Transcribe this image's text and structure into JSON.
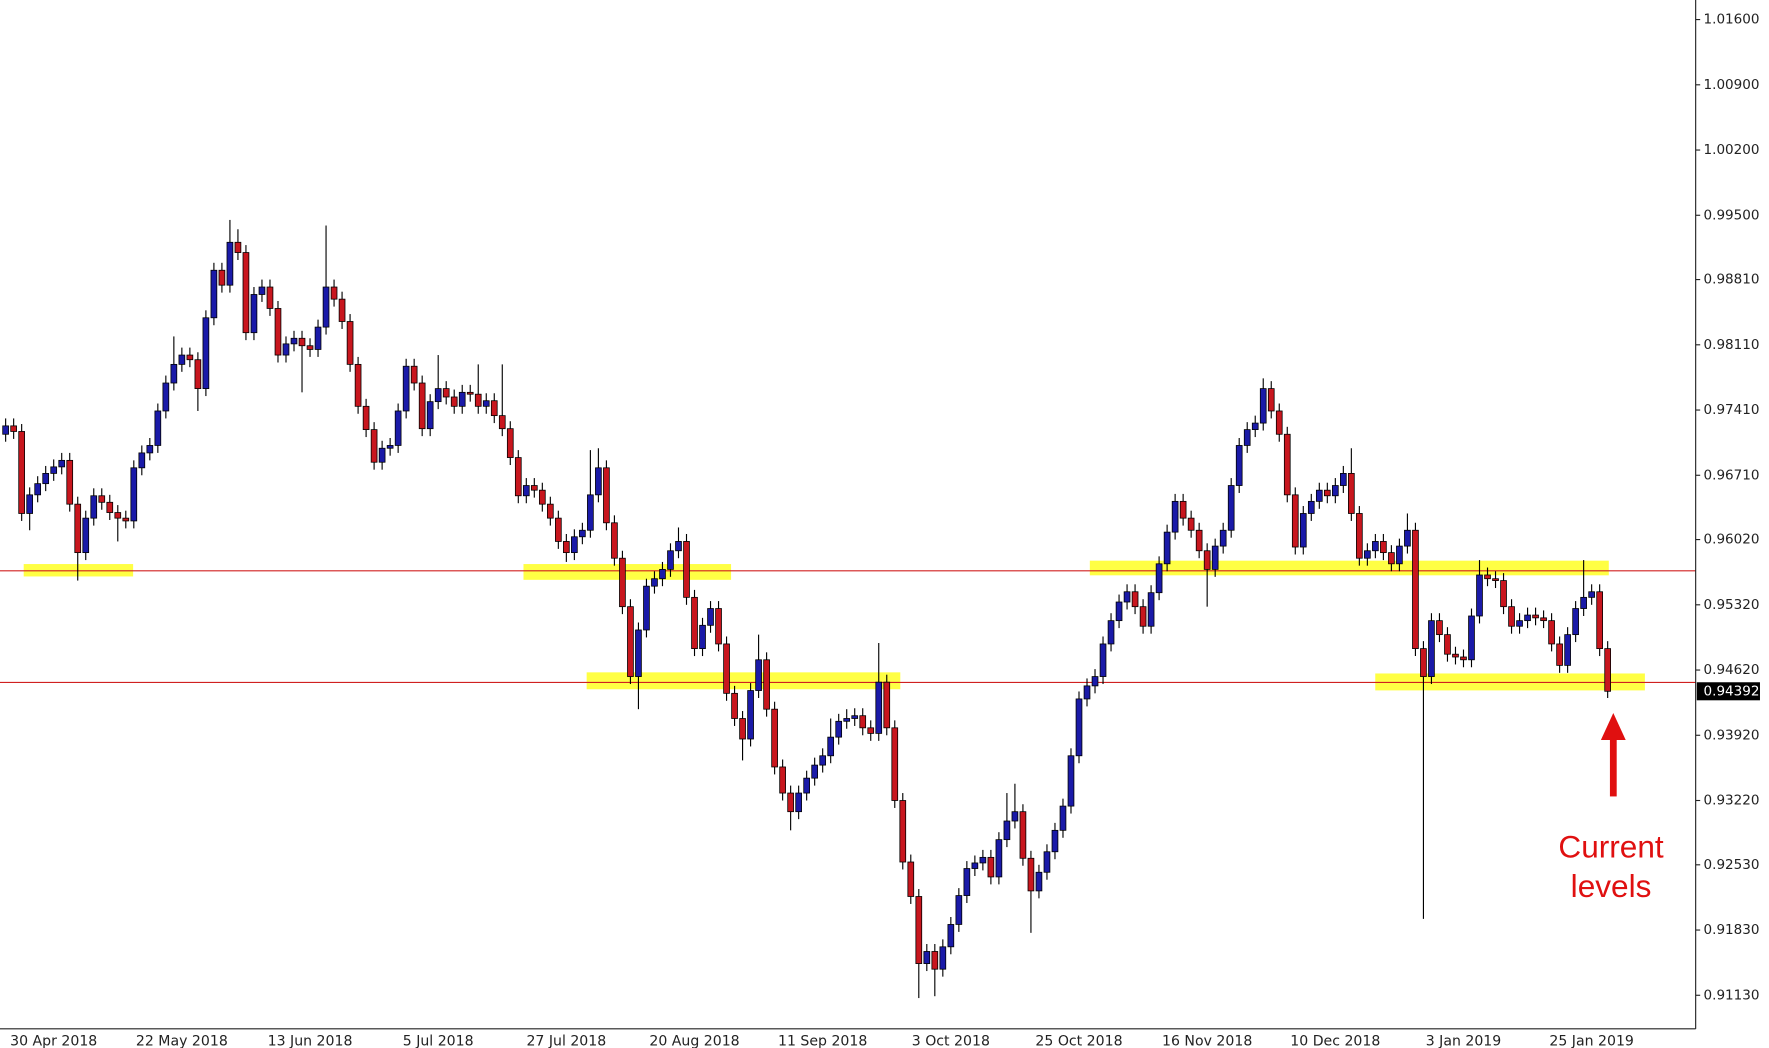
{
  "chart_data": {
    "type": "candlestick",
    "up_color": "#1a1aa8",
    "down_color": "#c8161e",
    "wick_color": "#000000",
    "ylim": [
      0.9077,
      1.0181
    ],
    "yticks": [
      {
        "value": 1.016,
        "label": "1.01600"
      },
      {
        "value": 1.009,
        "label": "1.00900"
      },
      {
        "value": 1.002,
        "label": "1.00200"
      },
      {
        "value": 0.995,
        "label": "0.99500"
      },
      {
        "value": 0.9881,
        "label": "0.98810"
      },
      {
        "value": 0.9811,
        "label": "0.98110"
      },
      {
        "value": 0.9741,
        "label": "0.97410"
      },
      {
        "value": 0.9671,
        "label": "0.96710"
      },
      {
        "value": 0.9602,
        "label": "0.96020"
      },
      {
        "value": 0.9532,
        "label": "0.95320"
      },
      {
        "value": 0.9462,
        "label": "0.94620"
      },
      {
        "value": 0.9392,
        "label": "0.93920"
      },
      {
        "value": 0.9322,
        "label": "0.93220"
      },
      {
        "value": 0.9253,
        "label": "0.92530"
      },
      {
        "value": 0.9183,
        "label": "0.91830"
      },
      {
        "value": 0.9113,
        "label": "0.91130"
      }
    ],
    "grid": false,
    "current_price": {
      "value": 0.94392,
      "label": "0.94392"
    },
    "annotation": [
      "Current",
      "levels"
    ],
    "categories": [
      null,
      null,
      null,
      null,
      null,
      null,
      "30 Apr 2018",
      null,
      null,
      null,
      null,
      null,
      null,
      null,
      null,
      null,
      null,
      null,
      null,
      null,
      null,
      null,
      "22 May 2018",
      null,
      null,
      null,
      null,
      null,
      null,
      null,
      null,
      null,
      null,
      null,
      null,
      null,
      null,
      null,
      "13 Jun 2018",
      null,
      null,
      null,
      null,
      null,
      null,
      null,
      null,
      null,
      null,
      null,
      null,
      null,
      null,
      null,
      "5 Jul 2018",
      null,
      null,
      null,
      null,
      null,
      null,
      null,
      null,
      null,
      null,
      null,
      null,
      null,
      null,
      null,
      "27 Jul 2018",
      null,
      null,
      null,
      null,
      null,
      null,
      null,
      null,
      null,
      null,
      null,
      null,
      null,
      null,
      null,
      "20 Aug 2018",
      null,
      null,
      null,
      null,
      null,
      null,
      null,
      null,
      null,
      null,
      null,
      null,
      null,
      null,
      null,
      "11 Sep 2018",
      null,
      null,
      null,
      null,
      null,
      null,
      null,
      null,
      null,
      null,
      null,
      null,
      null,
      null,
      null,
      "3 Oct 2018",
      null,
      null,
      null,
      null,
      null,
      null,
      null,
      null,
      null,
      null,
      null,
      null,
      null,
      null,
      null,
      "25 Oct 2018",
      null,
      null,
      null,
      null,
      null,
      null,
      null,
      null,
      null,
      null,
      null,
      null,
      null,
      null,
      null,
      "16 Nov 2018",
      null,
      null,
      null,
      null,
      null,
      null,
      null,
      null,
      null,
      null,
      null,
      null,
      null,
      null,
      null,
      "10 Dec 2018",
      null,
      null,
      null,
      null,
      null,
      null,
      null,
      null,
      null,
      null,
      null,
      null,
      null,
      null,
      null,
      "3 Jan 2019",
      null,
      null,
      null,
      null,
      null,
      null,
      null,
      null,
      null,
      null,
      null,
      null,
      null,
      null,
      null,
      "25 Jan 2019",
      null,
      null
    ],
    "open": [
      0.9715,
      0.9724,
      0.9718,
      0.963,
      0.965,
      0.9662,
      0.9673,
      0.968,
      0.9687,
      0.964,
      0.9588,
      0.9625,
      0.9649,
      0.9642,
      0.9631,
      0.9625,
      0.9622,
      0.9679,
      0.9695,
      0.9703,
      0.974,
      0.977,
      0.979,
      0.98,
      0.9795,
      0.9764,
      0.984,
      0.9891,
      0.9875,
      0.9921,
      0.991,
      0.9824,
      0.9865,
      0.9873,
      0.985,
      0.98,
      0.9812,
      0.9818,
      0.981,
      0.9806,
      0.983,
      0.9873,
      0.986,
      0.9836,
      0.979,
      0.9745,
      0.972,
      0.9685,
      0.97,
      0.9703,
      0.974,
      0.9788,
      0.977,
      0.9721,
      0.975,
      0.9764,
      0.9755,
      0.9745,
      0.976,
      0.9758,
      0.9745,
      0.9751,
      0.9735,
      0.9721,
      0.969,
      0.9649,
      0.966,
      0.9655,
      0.964,
      0.9625,
      0.96,
      0.9588,
      0.9605,
      0.9612,
      0.965,
      0.9679,
      0.962,
      0.9582,
      0.953,
      0.9455,
      0.9505,
      0.9552,
      0.956,
      0.957,
      0.959,
      0.96,
      0.954,
      0.9485,
      0.951,
      0.9528,
      0.949,
      0.9437,
      0.941,
      0.9388,
      0.944,
      0.9473,
      0.942,
      0.9358,
      0.933,
      0.931,
      0.933,
      0.9346,
      0.936,
      0.937,
      0.939,
      0.9407,
      0.941,
      0.9413,
      0.94,
      0.9394,
      0.9449,
      0.94,
      0.9322,
      0.9256,
      0.9219,
      0.9147,
      0.916,
      0.9141,
      0.9165,
      0.9189,
      0.922,
      0.9249,
      0.9255,
      0.9261,
      0.924,
      0.928,
      0.93,
      0.931,
      0.926,
      0.9225,
      0.9245,
      0.9267,
      0.929,
      0.9316,
      0.937,
      0.9431,
      0.9445,
      0.9455,
      0.949,
      0.9515,
      0.9535,
      0.9546,
      0.953,
      0.9509,
      0.9545,
      0.9576,
      0.961,
      0.9643,
      0.9625,
      0.9612,
      0.959,
      0.957,
      0.9595,
      0.9612,
      0.966,
      0.9703,
      0.972,
      0.9727,
      0.9764,
      0.974,
      0.9715,
      0.965,
      0.9594,
      0.963,
      0.9643,
      0.9655,
      0.9649,
      0.966,
      0.9673,
      0.963,
      0.9582,
      0.959,
      0.96,
      0.9588,
      0.9576,
      0.9595,
      0.9612,
      0.9485,
      0.9455,
      0.9515,
      0.95,
      0.9479,
      0.9476,
      0.9473,
      0.952,
      0.9564,
      0.956,
      0.9558,
      0.953,
      0.9509,
      0.9515,
      0.9521,
      0.9518,
      0.9515,
      0.949,
      0.9467,
      0.95,
      0.9528,
      0.954,
      0.9546,
      0.9485
    ],
    "high": [
      0.9732,
      0.9732,
      0.9726,
      0.9658,
      0.967,
      0.9681,
      0.9688,
      0.9695,
      0.9695,
      0.9648,
      0.9633,
      0.9657,
      0.9657,
      0.965,
      0.9639,
      0.9633,
      0.9687,
      0.9703,
      0.9711,
      0.9748,
      0.9778,
      0.982,
      0.9808,
      0.9808,
      0.9803,
      0.9848,
      0.9899,
      0.9899,
      0.9945,
      0.9935,
      0.9918,
      0.9873,
      0.9881,
      0.9881,
      0.9858,
      0.982,
      0.9826,
      0.9826,
      0.9818,
      0.9838,
      0.9939,
      0.9881,
      0.9868,
      0.9844,
      0.9798,
      0.9753,
      0.9728,
      0.9708,
      0.9711,
      0.9748,
      0.9796,
      0.9796,
      0.9778,
      0.9758,
      0.98,
      0.9772,
      0.9763,
      0.9768,
      0.9768,
      0.979,
      0.9759,
      0.9759,
      0.979,
      0.9729,
      0.9698,
      0.9668,
      0.9668,
      0.9663,
      0.9648,
      0.9633,
      0.9608,
      0.9613,
      0.962,
      0.9698,
      0.97,
      0.9687,
      0.9628,
      0.959,
      0.9538,
      0.9513,
      0.956,
      0.9568,
      0.9578,
      0.9598,
      0.9615,
      0.9608,
      0.9548,
      0.9518,
      0.9536,
      0.9536,
      0.9498,
      0.9445,
      0.9418,
      0.9448,
      0.95,
      0.9481,
      0.9428,
      0.9366,
      0.9338,
      0.9338,
      0.9354,
      0.9368,
      0.9378,
      0.941,
      0.9415,
      0.942,
      0.9421,
      0.9421,
      0.9408,
      0.9491,
      0.9457,
      0.9408,
      0.933,
      0.9264,
      0.9227,
      0.9168,
      0.9168,
      0.9173,
      0.9197,
      0.9228,
      0.9257,
      0.9263,
      0.9269,
      0.9269,
      0.9288,
      0.933,
      0.934,
      0.9318,
      0.9268,
      0.9253,
      0.9275,
      0.9298,
      0.9324,
      0.9378,
      0.9439,
      0.9453,
      0.9463,
      0.9498,
      0.9523,
      0.9543,
      0.9554,
      0.9554,
      0.9538,
      0.9553,
      0.9584,
      0.9618,
      0.9651,
      0.9651,
      0.9633,
      0.962,
      0.9598,
      0.9603,
      0.962,
      0.9668,
      0.9711,
      0.9728,
      0.9735,
      0.9775,
      0.9772,
      0.9748,
      0.9723,
      0.9658,
      0.9638,
      0.9651,
      0.9663,
      0.9663,
      0.9668,
      0.9681,
      0.97,
      0.9638,
      0.9598,
      0.9608,
      0.9608,
      0.9596,
      0.9603,
      0.963,
      0.962,
      0.9493,
      0.9523,
      0.9523,
      0.9508,
      0.9487,
      0.9484,
      0.9528,
      0.958,
      0.9572,
      0.9568,
      0.9566,
      0.9538,
      0.9523,
      0.9529,
      0.9529,
      0.9526,
      0.9523,
      0.9498,
      0.9508,
      0.9536,
      0.958,
      0.9554,
      0.9554,
      0.9493
    ],
    "low": [
      0.9707,
      0.971,
      0.9622,
      0.9612,
      0.9642,
      0.9654,
      0.9665,
      0.9672,
      0.9632,
      0.9558,
      0.958,
      0.9617,
      0.9634,
      0.9623,
      0.96,
      0.9614,
      0.9614,
      0.9671,
      0.9687,
      0.9695,
      0.9732,
      0.9762,
      0.9782,
      0.9787,
      0.974,
      0.9756,
      0.9832,
      0.9867,
      0.9867,
      0.9902,
      0.9816,
      0.9816,
      0.9857,
      0.9842,
      0.9792,
      0.9792,
      0.9804,
      0.976,
      0.9798,
      0.9798,
      0.9822,
      0.9852,
      0.9828,
      0.9782,
      0.9737,
      0.9712,
      0.9677,
      0.9677,
      0.9692,
      0.9695,
      0.9732,
      0.9762,
      0.9713,
      0.9713,
      0.9742,
      0.9747,
      0.9737,
      0.9737,
      0.975,
      0.9737,
      0.9737,
      0.9727,
      0.9713,
      0.9682,
      0.9641,
      0.9641,
      0.9647,
      0.9632,
      0.9617,
      0.9592,
      0.9578,
      0.958,
      0.9597,
      0.9604,
      0.9642,
      0.9612,
      0.9574,
      0.9522,
      0.9447,
      0.942,
      0.9497,
      0.9544,
      0.9552,
      0.9562,
      0.9582,
      0.9532,
      0.9477,
      0.9477,
      0.9502,
      0.9482,
      0.9429,
      0.9402,
      0.9365,
      0.938,
      0.9432,
      0.9412,
      0.935,
      0.9322,
      0.929,
      0.9302,
      0.9322,
      0.9338,
      0.9352,
      0.9362,
      0.9382,
      0.9399,
      0.9402,
      0.9392,
      0.9386,
      0.9386,
      0.9392,
      0.9314,
      0.9248,
      0.9211,
      0.911,
      0.9139,
      0.9112,
      0.9133,
      0.9157,
      0.9181,
      0.9212,
      0.9241,
      0.9247,
      0.9232,
      0.9232,
      0.9272,
      0.9292,
      0.9252,
      0.918,
      0.9217,
      0.9237,
      0.9259,
      0.9282,
      0.9308,
      0.9362,
      0.9423,
      0.9437,
      0.9447,
      0.9482,
      0.9507,
      0.9527,
      0.9522,
      0.9501,
      0.9501,
      0.9537,
      0.9568,
      0.9602,
      0.9617,
      0.9604,
      0.9582,
      0.953,
      0.9562,
      0.9587,
      0.9604,
      0.9652,
      0.9695,
      0.9712,
      0.9719,
      0.9732,
      0.9707,
      0.9642,
      0.9586,
      0.9586,
      0.9622,
      0.9635,
      0.9641,
      0.9641,
      0.9652,
      0.9622,
      0.9574,
      0.9574,
      0.9582,
      0.958,
      0.9568,
      0.9568,
      0.9587,
      0.9477,
      0.9195,
      0.9447,
      0.9492,
      0.9471,
      0.9468,
      0.9465,
      0.9465,
      0.9512,
      0.9552,
      0.955,
      0.9522,
      0.9501,
      0.9501,
      0.9507,
      0.951,
      0.9507,
      0.9482,
      0.9459,
      0.9459,
      0.9492,
      0.952,
      0.9532,
      0.9477,
      0.9432
    ],
    "close": [
      0.9724,
      0.9718,
      0.963,
      0.965,
      0.9662,
      0.9673,
      0.968,
      0.9687,
      0.964,
      0.9588,
      0.9625,
      0.9649,
      0.9642,
      0.9631,
      0.9625,
      0.9622,
      0.9679,
      0.9695,
      0.9703,
      0.974,
      0.977,
      0.979,
      0.98,
      0.9795,
      0.9764,
      0.984,
      0.9891,
      0.9875,
      0.9921,
      0.991,
      0.9824,
      0.9865,
      0.9873,
      0.985,
      0.98,
      0.9812,
      0.9818,
      0.981,
      0.9806,
      0.983,
      0.9873,
      0.986,
      0.9836,
      0.979,
      0.9745,
      0.972,
      0.9685,
      0.97,
      0.9703,
      0.974,
      0.9788,
      0.977,
      0.9721,
      0.975,
      0.9764,
      0.9755,
      0.9745,
      0.976,
      0.9758,
      0.9745,
      0.9751,
      0.9735,
      0.9721,
      0.969,
      0.9649,
      0.966,
      0.9655,
      0.964,
      0.9625,
      0.96,
      0.9588,
      0.9605,
      0.9612,
      0.965,
      0.9679,
      0.962,
      0.9582,
      0.953,
      0.9455,
      0.9505,
      0.9552,
      0.956,
      0.957,
      0.959,
      0.96,
      0.954,
      0.9485,
      0.951,
      0.9528,
      0.949,
      0.9437,
      0.941,
      0.9388,
      0.944,
      0.9473,
      0.942,
      0.9358,
      0.933,
      0.931,
      0.933,
      0.9346,
      0.936,
      0.937,
      0.939,
      0.9407,
      0.941,
      0.9413,
      0.94,
      0.9394,
      0.9449,
      0.94,
      0.9322,
      0.9256,
      0.9219,
      0.9147,
      0.916,
      0.9141,
      0.9165,
      0.9189,
      0.922,
      0.9249,
      0.9255,
      0.9261,
      0.924,
      0.928,
      0.93,
      0.931,
      0.926,
      0.9225,
      0.9245,
      0.9267,
      0.929,
      0.9316,
      0.937,
      0.9431,
      0.9445,
      0.9455,
      0.949,
      0.9515,
      0.9535,
      0.9546,
      0.953,
      0.9509,
      0.9545,
      0.9576,
      0.961,
      0.9643,
      0.9625,
      0.9612,
      0.959,
      0.957,
      0.9595,
      0.9612,
      0.966,
      0.9703,
      0.972,
      0.9727,
      0.9764,
      0.974,
      0.9715,
      0.965,
      0.9594,
      0.963,
      0.9643,
      0.9655,
      0.9649,
      0.966,
      0.9673,
      0.963,
      0.9582,
      0.959,
      0.96,
      0.9588,
      0.9576,
      0.9595,
      0.9612,
      0.9485,
      0.9455,
      0.9515,
      0.95,
      0.9479,
      0.9476,
      0.9473,
      0.952,
      0.9564,
      0.956,
      0.9558,
      0.953,
      0.9509,
      0.9515,
      0.9521,
      0.9518,
      0.9515,
      0.949,
      0.9467,
      0.95,
      0.9528,
      0.954,
      0.9546,
      0.9485,
      0.94392
    ]
  }
}
